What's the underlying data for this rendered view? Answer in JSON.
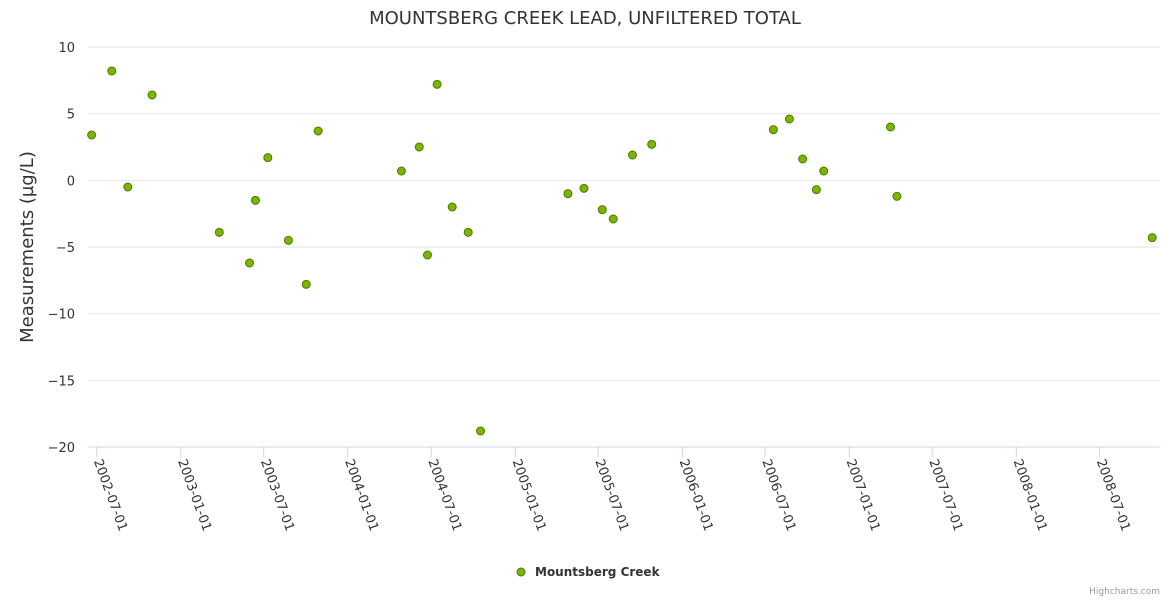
{
  "chart_data": {
    "type": "scatter",
    "title": "MOUNTSBERG CREEK LEAD, UNFILTERED TOTAL",
    "xlabel": "",
    "ylabel": "Measurements (µg/L)",
    "ylim": [
      -20,
      10
    ],
    "yticks": [
      10,
      5,
      0,
      -5,
      -10,
      -15,
      -20
    ],
    "ytick_labels": [
      "10",
      "5",
      "0",
      "−5",
      "−10",
      "−15",
      "−20"
    ],
    "xlim": [
      "2002-06-12",
      "2008-11-10"
    ],
    "xticks": [
      "2002-07-01",
      "2003-01-01",
      "2003-07-01",
      "2004-01-01",
      "2004-07-01",
      "2005-01-01",
      "2005-07-01",
      "2006-01-01",
      "2006-07-01",
      "2007-01-01",
      "2007-07-01",
      "2008-01-01",
      "2008-07-01"
    ],
    "grid": true,
    "legend_position": "bottom-center",
    "series": [
      {
        "name": "Mountsberg Creek",
        "color": "#7cb500",
        "points": [
          [
            "2002-06-20",
            3.4
          ],
          [
            "2002-08-03",
            8.2
          ],
          [
            "2002-09-07",
            -0.5
          ],
          [
            "2002-10-30",
            6.4
          ],
          [
            "2003-03-26",
            -3.9
          ],
          [
            "2003-05-31",
            -6.2
          ],
          [
            "2003-06-13",
            -1.5
          ],
          [
            "2003-07-10",
            1.7
          ],
          [
            "2003-08-24",
            -4.5
          ],
          [
            "2003-10-02",
            -7.8
          ],
          [
            "2003-10-28",
            3.7
          ],
          [
            "2004-04-27",
            0.7
          ],
          [
            "2004-06-05",
            2.5
          ],
          [
            "2004-06-23",
            -5.6
          ],
          [
            "2004-07-14",
            7.2
          ],
          [
            "2004-08-16",
            -2.0
          ],
          [
            "2004-09-20",
            -3.9
          ],
          [
            "2004-10-17",
            -18.8
          ],
          [
            "2005-04-26",
            -1.0
          ],
          [
            "2005-05-31",
            -0.6
          ],
          [
            "2005-07-10",
            -2.2
          ],
          [
            "2005-08-03",
            -2.9
          ],
          [
            "2005-09-14",
            1.9
          ],
          [
            "2005-10-26",
            2.7
          ],
          [
            "2006-07-19",
            3.8
          ],
          [
            "2006-08-23",
            4.6
          ],
          [
            "2006-09-21",
            1.6
          ],
          [
            "2006-10-21",
            -0.7
          ],
          [
            "2006-11-06",
            0.7
          ],
          [
            "2007-04-01",
            4.0
          ],
          [
            "2007-04-15",
            -1.2
          ],
          [
            "2008-10-24",
            -4.3
          ]
        ]
      }
    ]
  },
  "credits": "Highcharts.com"
}
